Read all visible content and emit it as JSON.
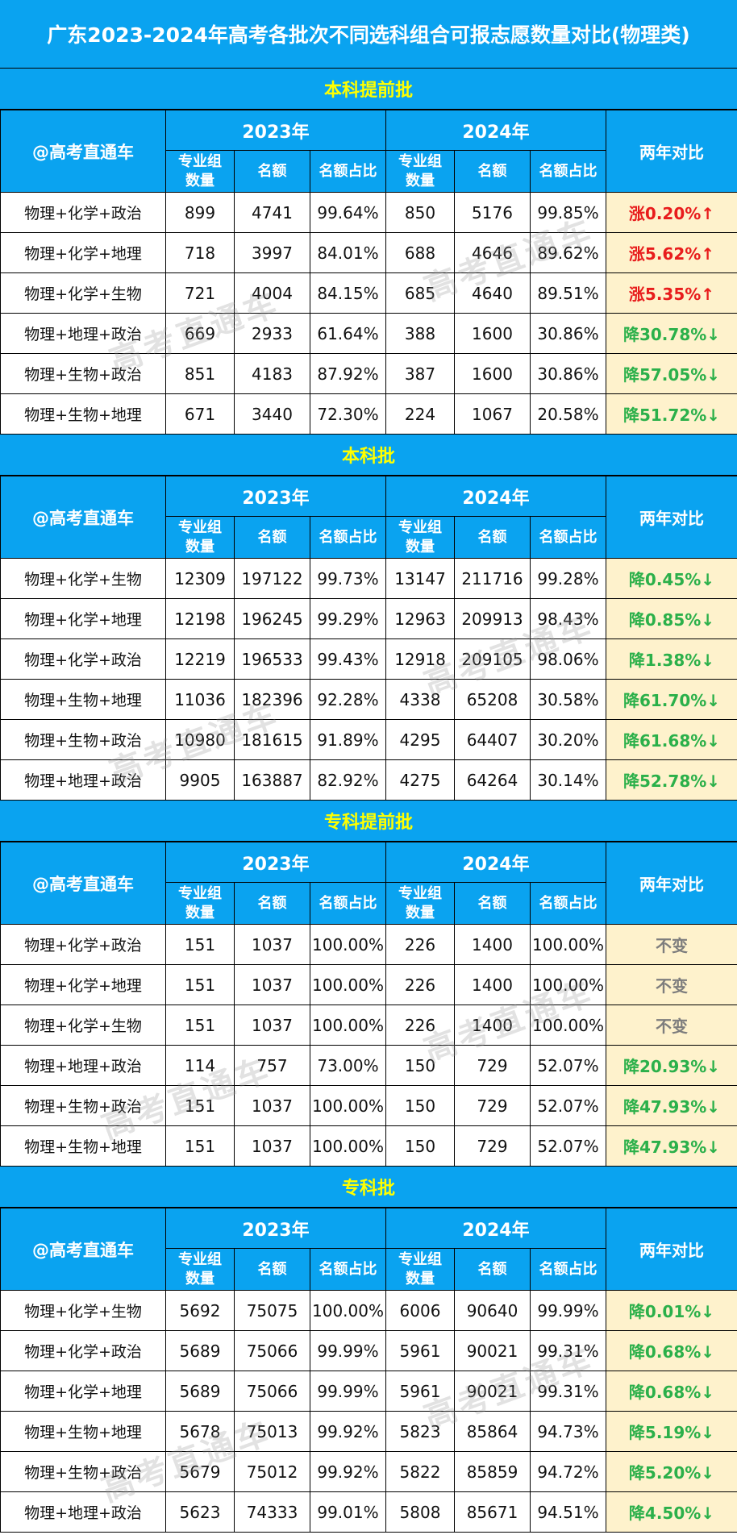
{
  "title": "广东2023-2024年高考各批次不同选科组合可报志愿数量对比(物理类)",
  "watermark": "高考直通车",
  "header": {
    "brand": "@高考直通车",
    "year_2023": "2023年",
    "year_2024": "2024年",
    "compare": "两年对比",
    "col_groups_line1": "专业组",
    "col_groups_line2": "数量",
    "col_quota": "名额",
    "col_share": "名额占比"
  },
  "colors": {
    "header_bg": "#0aa3f0",
    "section_title": "#ffff00",
    "up": "#e81c1c",
    "down": "#2bb04a",
    "same": "#7d7d7d",
    "compare_bg": "#fef2cc"
  },
  "sections": [
    {
      "name": "本科提前批",
      "rows": [
        {
          "combo": "物理+化学+政治",
          "g23": "899",
          "q23": "4741",
          "s23": "99.64%",
          "g24": "850",
          "q24": "5176",
          "s24": "99.85%",
          "delta": "涨0.20%↑",
          "trend": "up"
        },
        {
          "combo": "物理+化学+地理",
          "g23": "718",
          "q23": "3997",
          "s23": "84.01%",
          "g24": "688",
          "q24": "4646",
          "s24": "89.62%",
          "delta": "涨5.62%↑",
          "trend": "up"
        },
        {
          "combo": "物理+化学+生物",
          "g23": "721",
          "q23": "4004",
          "s23": "84.15%",
          "g24": "685",
          "q24": "4640",
          "s24": "89.51%",
          "delta": "涨5.35%↑",
          "trend": "up"
        },
        {
          "combo": "物理+地理+政治",
          "g23": "669",
          "q23": "2933",
          "s23": "61.64%",
          "g24": "388",
          "q24": "1600",
          "s24": "30.86%",
          "delta": "降30.78%↓",
          "trend": "down"
        },
        {
          "combo": "物理+生物+政治",
          "g23": "851",
          "q23": "4183",
          "s23": "87.92%",
          "g24": "387",
          "q24": "1600",
          "s24": "30.86%",
          "delta": "降57.05%↓",
          "trend": "down"
        },
        {
          "combo": "物理+生物+地理",
          "g23": "671",
          "q23": "3440",
          "s23": "72.30%",
          "g24": "224",
          "q24": "1067",
          "s24": "20.58%",
          "delta": "降51.72%↓",
          "trend": "down"
        }
      ]
    },
    {
      "name": "本科批",
      "rows": [
        {
          "combo": "物理+化学+生物",
          "g23": "12309",
          "q23": "197122",
          "s23": "99.73%",
          "g24": "13147",
          "q24": "211716",
          "s24": "99.28%",
          "delta": "降0.45%↓",
          "trend": "down"
        },
        {
          "combo": "物理+化学+地理",
          "g23": "12198",
          "q23": "196245",
          "s23": "99.29%",
          "g24": "12963",
          "q24": "209913",
          "s24": "98.43%",
          "delta": "降0.85%↓",
          "trend": "down"
        },
        {
          "combo": "物理+化学+政治",
          "g23": "12219",
          "q23": "196533",
          "s23": "99.43%",
          "g24": "12918",
          "q24": "209105",
          "s24": "98.06%",
          "delta": "降1.38%↓",
          "trend": "down"
        },
        {
          "combo": "物理+生物+地理",
          "g23": "11036",
          "q23": "182396",
          "s23": "92.28%",
          "g24": "4338",
          "q24": "65208",
          "s24": "30.58%",
          "delta": "降61.70%↓",
          "trend": "down"
        },
        {
          "combo": "物理+生物+政治",
          "g23": "10980",
          "q23": "181615",
          "s23": "91.89%",
          "g24": "4295",
          "q24": "64407",
          "s24": "30.20%",
          "delta": "降61.68%↓",
          "trend": "down"
        },
        {
          "combo": "物理+地理+政治",
          "g23": "9905",
          "q23": "163887",
          "s23": "82.92%",
          "g24": "4275",
          "q24": "64264",
          "s24": "30.14%",
          "delta": "降52.78%↓",
          "trend": "down"
        }
      ]
    },
    {
      "name": "专科提前批",
      "rows": [
        {
          "combo": "物理+化学+政治",
          "g23": "151",
          "q23": "1037",
          "s23": "100.00%",
          "g24": "226",
          "q24": "1400",
          "s24": "100.00%",
          "delta": "不变",
          "trend": "same"
        },
        {
          "combo": "物理+化学+地理",
          "g23": "151",
          "q23": "1037",
          "s23": "100.00%",
          "g24": "226",
          "q24": "1400",
          "s24": "100.00%",
          "delta": "不变",
          "trend": "same"
        },
        {
          "combo": "物理+化学+生物",
          "g23": "151",
          "q23": "1037",
          "s23": "100.00%",
          "g24": "226",
          "q24": "1400",
          "s24": "100.00%",
          "delta": "不变",
          "trend": "same"
        },
        {
          "combo": "物理+地理+政治",
          "g23": "114",
          "q23": "757",
          "s23": "73.00%",
          "g24": "150",
          "q24": "729",
          "s24": "52.07%",
          "delta": "降20.93%↓",
          "trend": "down"
        },
        {
          "combo": "物理+生物+政治",
          "g23": "151",
          "q23": "1037",
          "s23": "100.00%",
          "g24": "150",
          "q24": "729",
          "s24": "52.07%",
          "delta": "降47.93%↓",
          "trend": "down"
        },
        {
          "combo": "物理+生物+地理",
          "g23": "151",
          "q23": "1037",
          "s23": "100.00%",
          "g24": "150",
          "q24": "729",
          "s24": "52.07%",
          "delta": "降47.93%↓",
          "trend": "down"
        }
      ]
    },
    {
      "name": "专科批",
      "rows": [
        {
          "combo": "物理+化学+生物",
          "g23": "5692",
          "q23": "75075",
          "s23": "100.00%",
          "g24": "6006",
          "q24": "90640",
          "s24": "99.99%",
          "delta": "降0.01%↓",
          "trend": "down"
        },
        {
          "combo": "物理+化学+政治",
          "g23": "5689",
          "q23": "75066",
          "s23": "99.99%",
          "g24": "5961",
          "q24": "90021",
          "s24": "99.31%",
          "delta": "降0.68%↓",
          "trend": "down"
        },
        {
          "combo": "物理+化学+地理",
          "g23": "5689",
          "q23": "75066",
          "s23": "99.99%",
          "g24": "5961",
          "q24": "90021",
          "s24": "99.31%",
          "delta": "降0.68%↓",
          "trend": "down"
        },
        {
          "combo": "物理+生物+地理",
          "g23": "5678",
          "q23": "75013",
          "s23": "99.92%",
          "g24": "5823",
          "q24": "85864",
          "s24": "94.73%",
          "delta": "降5.19%↓",
          "trend": "down"
        },
        {
          "combo": "物理+生物+政治",
          "g23": "5679",
          "q23": "75012",
          "s23": "99.92%",
          "g24": "5822",
          "q24": "85859",
          "s24": "94.72%",
          "delta": "降5.20%↓",
          "trend": "down"
        },
        {
          "combo": "物理+地理+政治",
          "g23": "5623",
          "q23": "74333",
          "s23": "99.01%",
          "g24": "5808",
          "q24": "85671",
          "s24": "94.51%",
          "delta": "降4.50%↓",
          "trend": "down"
        }
      ]
    }
  ]
}
